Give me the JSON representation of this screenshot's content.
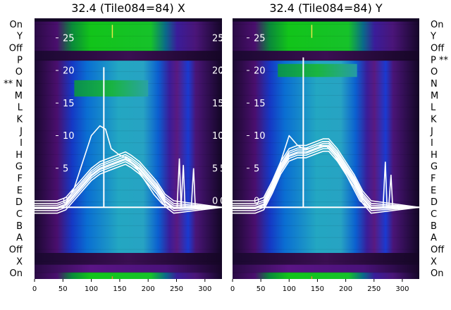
{
  "chart_data": [
    {
      "type": "heatmap",
      "title": "32.4 (Tile084=84) X",
      "xlim": [
        0,
        330
      ],
      "ylim": [
        -12,
        28
      ],
      "xticks": [
        0,
        50,
        100,
        150,
        200,
        250,
        300
      ],
      "yticks": [
        0,
        5,
        10,
        15,
        20,
        25
      ],
      "row_labels": [
        "On",
        "Y",
        "Off",
        "P",
        "O",
        "** N",
        "M",
        "L",
        "K",
        "J",
        "I",
        "H",
        "G",
        "F",
        "E",
        "D",
        "C",
        "B",
        "A",
        "Off",
        "X",
        "On"
      ],
      "row_labels_side": "left",
      "bands": [
        {
          "y0": 23.0,
          "y1": 27.5,
          "kind": "green"
        },
        {
          "y0": 21.5,
          "y1": 23.0,
          "kind": "dark"
        },
        {
          "y0": -8.0,
          "y1": 21.5,
          "kind": "blue"
        },
        {
          "y0": -9.8,
          "y1": -8.0,
          "kind": "dark"
        },
        {
          "y0": -11.0,
          "y1": -9.8,
          "kind": "purple"
        },
        {
          "y0": -12.0,
          "y1": -11.0,
          "kind": "green"
        }
      ],
      "highlight_bands": [
        {
          "y0": 16.0,
          "y1": 18.5,
          "x0": 70,
          "x1": 200
        }
      ],
      "vertical_line_x": 122,
      "curves": [
        {
          "name": "upper",
          "x": [
            0,
            40,
            55,
            70,
            85,
            100,
            115,
            125,
            135,
            150,
            165,
            180,
            195,
            210,
            225,
            240
          ],
          "y": [
            -1,
            -1,
            -0.5,
            2,
            6,
            10,
            11.5,
            11,
            8,
            7,
            6.5,
            5,
            3,
            1,
            -0.5,
            -1
          ]
        },
        {
          "name": "bundle",
          "x": [
            0,
            40,
            55,
            70,
            85,
            100,
            115,
            130,
            145,
            160,
            170,
            185,
            200,
            215,
            230,
            245
          ],
          "y": [
            -1,
            -1,
            -0.5,
            1,
            2.5,
            4,
            5,
            5.5,
            6,
            6.5,
            6,
            5,
            3.5,
            2,
            0,
            -1
          ]
        }
      ],
      "spikes": [
        {
          "x": 122,
          "y": 20.5
        },
        {
          "x": 255,
          "y": 6.5
        },
        {
          "x": 262,
          "y": 5.5
        },
        {
          "x": 280,
          "y": 5.0
        }
      ]
    },
    {
      "type": "heatmap",
      "title": "32.4 (Tile084=84) Y",
      "xlim": [
        0,
        330
      ],
      "ylim": [
        -12,
        28
      ],
      "xticks": [
        0,
        50,
        100,
        150,
        200,
        250,
        300
      ],
      "yticks": [
        0,
        5,
        10,
        15,
        20,
        25
      ],
      "row_labels": [
        "On",
        "Y",
        "Off",
        "P **",
        "O",
        "N",
        "M",
        "L",
        "K",
        "J",
        "I",
        "H",
        "G",
        "F",
        "E",
        "D",
        "C",
        "B",
        "A",
        "Off",
        "X",
        "On"
      ],
      "row_labels_side": "right",
      "bands": [
        {
          "y0": 23.0,
          "y1": 27.5,
          "kind": "green"
        },
        {
          "y0": 21.5,
          "y1": 23.0,
          "kind": "dark"
        },
        {
          "y0": -8.0,
          "y1": 21.5,
          "kind": "blue"
        },
        {
          "y0": -9.8,
          "y1": -8.0,
          "kind": "dark"
        },
        {
          "y0": -11.0,
          "y1": -9.8,
          "kind": "purple"
        },
        {
          "y0": -12.0,
          "y1": -11.0,
          "kind": "green"
        }
      ],
      "highlight_bands": [
        {
          "y0": 19.0,
          "y1": 21.0,
          "x0": 80,
          "x1": 220
        }
      ],
      "vertical_line_x": 125,
      "curves": [
        {
          "name": "upper",
          "x": [
            0,
            40,
            55,
            70,
            85,
            100,
            115,
            125,
            135,
            150,
            165,
            180,
            195,
            210,
            225,
            240
          ],
          "y": [
            -1,
            -1,
            -0.5,
            2,
            6,
            10,
            8.5,
            8,
            8,
            8.5,
            8.5,
            7,
            5,
            2.5,
            0,
            -1
          ]
        },
        {
          "name": "bundle",
          "x": [
            0,
            40,
            55,
            70,
            85,
            100,
            115,
            130,
            145,
            160,
            170,
            185,
            200,
            215,
            230,
            245
          ],
          "y": [
            -1,
            -1,
            -0.5,
            2,
            5,
            7,
            7.5,
            7.5,
            8,
            8.5,
            8.5,
            7,
            5,
            3,
            0.5,
            -1
          ]
        }
      ],
      "spikes": [
        {
          "x": 125,
          "y": 22.0
        },
        {
          "x": 270,
          "y": 6.0
        },
        {
          "x": 280,
          "y": 4.0
        }
      ]
    }
  ]
}
